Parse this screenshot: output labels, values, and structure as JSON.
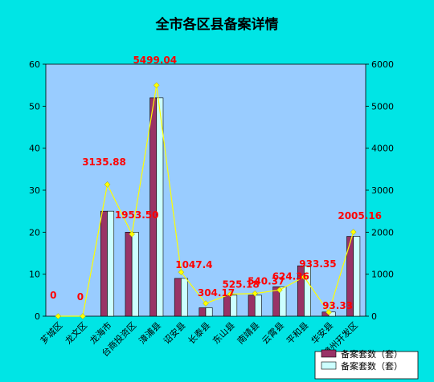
{
  "chart_data": {
    "type": "bar",
    "title": "全市各区县备案详情",
    "categories": [
      "芗城区",
      "龙文区",
      "龙海市",
      "台商投资区",
      "漳浦县",
      "诏安县",
      "长泰县",
      "东山县",
      "南靖县",
      "云霄县",
      "平和县",
      "华安县",
      "漳州开发区"
    ],
    "series": [
      {
        "name": "备案套数（套）",
        "kind": "bar",
        "axis": "left",
        "color": "#993366",
        "values": [
          0,
          0,
          25,
          20,
          52,
          9,
          2,
          5,
          5,
          7,
          12,
          1,
          19
        ]
      },
      {
        "name": "备案套数（套）",
        "kind": "bar",
        "axis": "left",
        "color": "#ccffff",
        "values": [
          0,
          0,
          25,
          20,
          52,
          9,
          2,
          5,
          5,
          7,
          12,
          1,
          19
        ]
      },
      {
        "name": "",
        "kind": "line",
        "axis": "right",
        "color": "#ffff00",
        "values": [
          0,
          0,
          3135.88,
          1953.5,
          5499.04,
          1047.4,
          304.17,
          525.18,
          540.37,
          624.36,
          933.35,
          93.33,
          2005.16
        ],
        "labels": [
          "0",
          "0",
          "3135.88",
          "1953.50",
          "5499.04",
          "1047.4",
          "304.17",
          "525.18",
          "540.37",
          "624.36",
          "933.35",
          "93.33",
          "2005.16"
        ]
      }
    ],
    "y_left": {
      "ticks": [
        "0",
        "10",
        "20",
        "30",
        "40",
        "50",
        "60"
      ],
      "min": 0,
      "max": 60
    },
    "y_right": {
      "ticks": [
        "0",
        "1000",
        "2000",
        "3000",
        "4000",
        "5000",
        "6000"
      ],
      "min": 0,
      "max": 6000
    },
    "grid": false,
    "legend_position": "bottom-right",
    "colors": {
      "background": "#00e5e5",
      "plot_area": "#99ccff",
      "data_label": "#ff0000"
    }
  }
}
